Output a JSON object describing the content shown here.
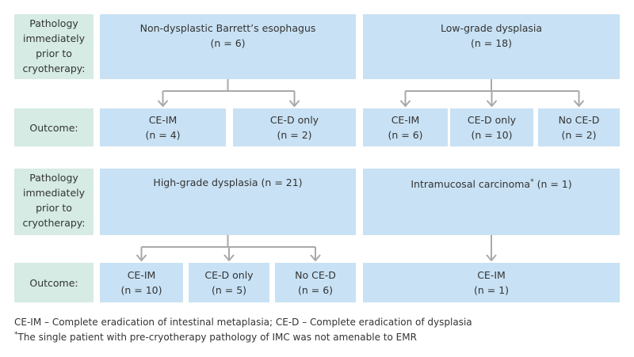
{
  "blocks": [
    {
      "row_label": "Pathology immediately prior to cryotherapy:",
      "outcome_label": "Outcome:",
      "pathologies": [
        {
          "title": "Non-dysplastic Barrett’s esophagus",
          "count": "(n = 6)",
          "outcomes": [
            {
              "title": "CE-IM",
              "count": "(n = 4)"
            },
            {
              "title": "CE-D only",
              "count": "(n = 2)"
            }
          ]
        },
        {
          "title": "Low-grade dysplasia",
          "count": "(n = 18)",
          "outcomes": [
            {
              "title": "CE-IM",
              "count": "(n = 6)"
            },
            {
              "title": "CE-D only",
              "count": "(n = 10)"
            },
            {
              "title": "No CE-D",
              "count": "(n = 2)"
            }
          ]
        }
      ]
    },
    {
      "row_label": "Pathology immediately prior to cryotherapy:",
      "outcome_label": "Outcome:",
      "pathologies": [
        {
          "title": "High-grade dysplasia",
          "count": "(n = 21)",
          "outcomes": [
            {
              "title": "CE-IM",
              "count": "(n = 10)"
            },
            {
              "title": "CE-D only",
              "count": "(n = 5)"
            },
            {
              "title": "No CE-D",
              "count": "(n = 6)"
            }
          ]
        },
        {
          "title": "Intramucosal carcinoma",
          "marker": "*",
          "count": "(n = 1)",
          "outcomes": [
            {
              "title": "CE-IM",
              "count": "(n = 1)"
            }
          ]
        }
      ]
    }
  ],
  "footnotes": [
    {
      "text": "CE-IM – Complete eradication of intestinal metaplasia; CE-D – Complete eradication of dysplasia"
    },
    {
      "marker": "*",
      "text": "The single patient with pre-cryotherapy pathology of IMC was not amenable to EMR"
    }
  ]
}
